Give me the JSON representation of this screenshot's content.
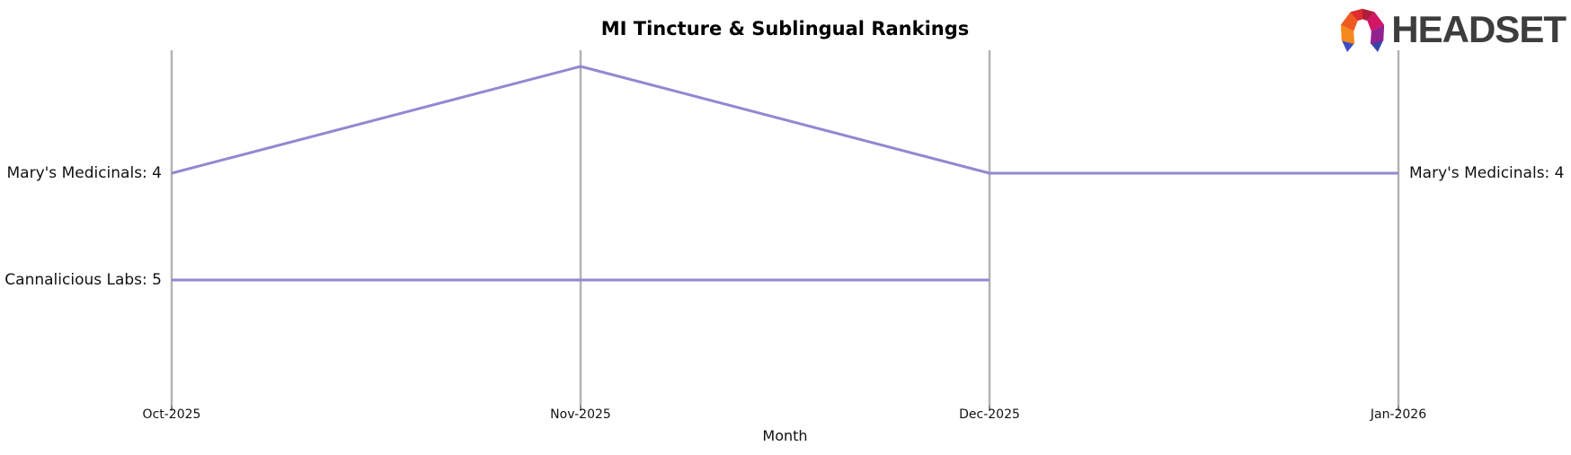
{
  "logo": {
    "wordmark": "HEADSET"
  },
  "chart_data": {
    "type": "line",
    "subtype": "bump-ranking",
    "title": "MI Tincture & Sublingual Rankings",
    "xlabel": "Month",
    "ylabel": "",
    "categories": [
      "Oct-2025",
      "Nov-2025",
      "Dec-2025",
      "Jan-2026"
    ],
    "y_axis": {
      "metric": "rank",
      "inverted": true,
      "visible_ranks": [
        3,
        4,
        5
      ]
    },
    "series": [
      {
        "name": "Mary's Medicinals",
        "ranks": [
          4,
          3,
          4,
          4
        ],
        "left_label": "Mary's Medicinals: 4",
        "right_label": "Mary's Medicinals: 4"
      },
      {
        "name": "Cannalicious Labs",
        "ranks": [
          5,
          5,
          5,
          null
        ],
        "left_label": "Cannalicious Labs: 5",
        "right_label": null
      }
    ],
    "legend": "none",
    "grid": "off",
    "style": {
      "line_color": "#9189d1",
      "axis_color": "#b3b3b3",
      "tick_color": "#333333",
      "text_color": "#111111"
    }
  }
}
